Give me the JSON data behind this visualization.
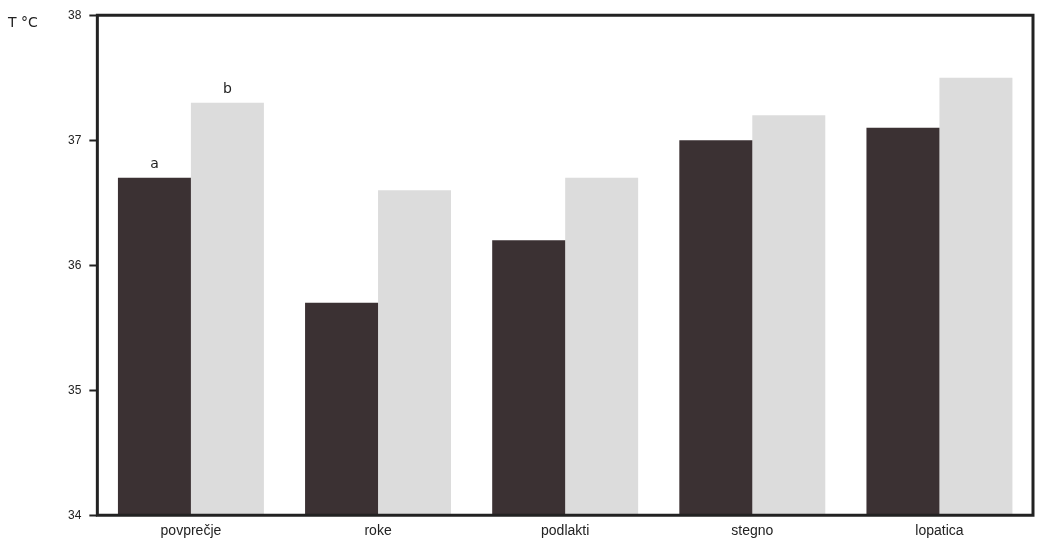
{
  "chart_data": {
    "type": "bar",
    "ylabel": "T °C",
    "categories": [
      "povprečje",
      "roke",
      "podlakti",
      "stegno",
      "lopatica"
    ],
    "series": [
      {
        "color": "#3b3133",
        "values": [
          36.7,
          35.7,
          36.2,
          37.0,
          37.1
        ]
      },
      {
        "color": "#dcdcdc",
        "values": [
          37.3,
          36.6,
          36.7,
          37.2,
          37.5
        ]
      }
    ],
    "ylim": [
      34,
      38
    ],
    "yticks": [
      34,
      35,
      36,
      37,
      38
    ],
    "grid": false,
    "legend": false,
    "annotations": [
      {
        "text": "a",
        "x": "povprečje",
        "y": 36.7
      },
      {
        "text": "b",
        "x": "povprečje",
        "y": 37.3
      }
    ]
  }
}
